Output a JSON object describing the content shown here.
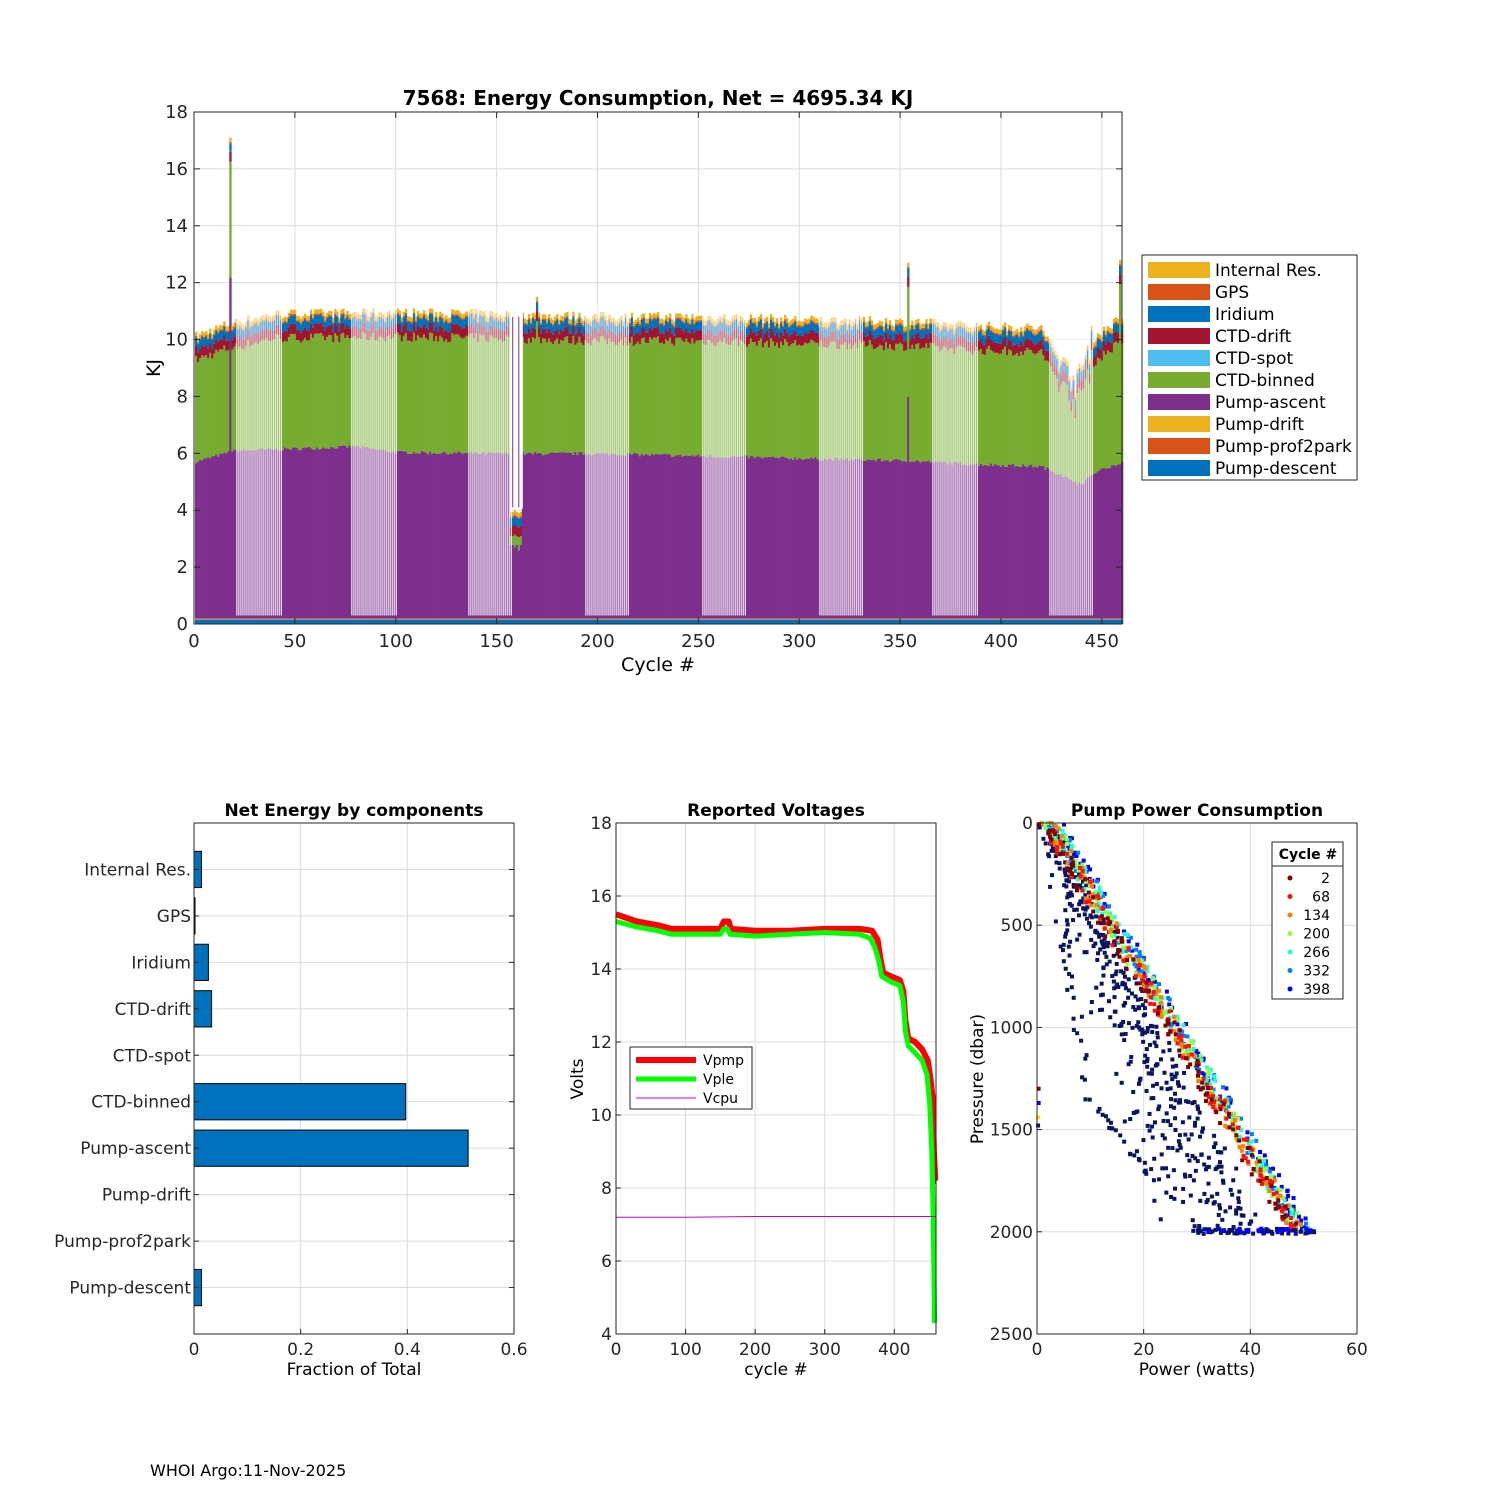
{
  "footer": "WHOI Argo:11-Nov-2025",
  "colors": {
    "Pump-descent": "#0072BD",
    "Pump-prof2park": "#D95319",
    "Pump-drift": "#EDB120",
    "Pump-ascent": "#7E2F8E",
    "CTD-binned": "#77AC30",
    "CTD-spot": "#4DBEEE",
    "CTD-drift": "#A2142F",
    "Iridium": "#0072BD",
    "GPS": "#D95319",
    "Internal Res.": "#EDB120"
  },
  "chart_data": [
    {
      "type": "stacked-bar",
      "title": "7568: Energy Consumption,  Net = 4695.34 KJ",
      "xlabel": "Cycle #",
      "ylabel": "KJ",
      "xlim": [
        0,
        460
      ],
      "ylim": [
        0,
        18
      ],
      "xticks": [
        0,
        50,
        100,
        150,
        200,
        250,
        300,
        350,
        400,
        450
      ],
      "yticks": [
        0,
        2,
        4,
        6,
        8,
        10,
        12,
        14,
        16,
        18
      ],
      "grid": true,
      "legend_position": "outside-right",
      "legend": [
        "Internal Res.",
        "GPS",
        "Iridium",
        "CTD-drift",
        "CTD-spot",
        "CTD-binned",
        "Pump-ascent",
        "Pump-drift",
        "Pump-prof2park",
        "Pump-descent"
      ],
      "stack_order": [
        "Pump-descent",
        "Pump-prof2park",
        "Pump-drift",
        "Pump-ascent",
        "CTD-binned",
        "CTD-spot",
        "CTD-drift",
        "Iridium",
        "GPS",
        "Internal Res."
      ],
      "cycles": 460,
      "typical_values": {
        "Pump-descent": 0.15,
        "Pump-prof2park": 0.02,
        "Pump-drift": 0.02,
        "Pump-ascent": 5.7,
        "CTD-binned": 4.3,
        "CTD-spot": 0.0,
        "CTD-drift": 0.35,
        "Iridium": 0.3,
        "GPS": 0.05,
        "Internal Res.": 0.15
      },
      "pump_ascent_profile": [
        [
          0,
          5.5
        ],
        [
          20,
          5.9
        ],
        [
          80,
          6.05
        ],
        [
          100,
          5.85
        ],
        [
          150,
          5.8
        ],
        [
          200,
          5.8
        ],
        [
          260,
          5.7
        ],
        [
          320,
          5.6
        ],
        [
          355,
          5.55
        ],
        [
          380,
          5.45
        ],
        [
          420,
          5.35
        ],
        [
          432,
          5.0
        ],
        [
          440,
          4.7
        ],
        [
          445,
          5.1
        ],
        [
          460,
          5.5
        ]
      ],
      "total_profile": [
        [
          0,
          10.1
        ],
        [
          15,
          10.5
        ],
        [
          40,
          10.9
        ],
        [
          100,
          10.95
        ],
        [
          150,
          10.9
        ],
        [
          200,
          10.8
        ],
        [
          250,
          10.8
        ],
        [
          300,
          10.7
        ],
        [
          340,
          10.65
        ],
        [
          360,
          10.6
        ],
        [
          380,
          10.5
        ],
        [
          420,
          10.4
        ],
        [
          432,
          9.0
        ],
        [
          438,
          8.5
        ],
        [
          445,
          10.0
        ],
        [
          460,
          10.8
        ]
      ],
      "annotations": [
        {
          "cycle": 18,
          "total": 17.1,
          "pump_ascent": 12.0
        },
        {
          "cycle": 354,
          "total": 12.7,
          "pump_ascent": 7.8
        },
        {
          "cycle": 459,
          "total": 12.8
        },
        {
          "cycle": 159,
          "total": 4.0,
          "pump_ascent": 2.5
        },
        {
          "cycle": 161,
          "total": 3.9,
          "pump_ascent": 2.4
        },
        {
          "cycle": 170,
          "total": 11.5
        }
      ],
      "hatched_ranges": [
        [
          21,
          43
        ],
        [
          78,
          100
        ],
        [
          136,
          157
        ],
        [
          194,
          215
        ],
        [
          252,
          273
        ],
        [
          310,
          331
        ],
        [
          366,
          388
        ],
        [
          424,
          445
        ]
      ]
    },
    {
      "type": "barh",
      "title": "Net Energy by components",
      "xlabel": "Fraction of Total",
      "xlim": [
        0,
        0.6
      ],
      "xticks": [
        0,
        0.2,
        0.4,
        0.6
      ],
      "xtick_labels": [
        "0",
        "0.2",
        "0.4",
        "0.6"
      ],
      "categories": [
        "Internal Res.",
        "GPS",
        "Iridium",
        "CTD-drift",
        "CTD-spot",
        "CTD-binned",
        "Pump-ascent",
        "Pump-drift",
        "Pump-prof2park",
        "Pump-descent"
      ],
      "values": [
        0.014,
        0.001,
        0.027,
        0.033,
        0.0,
        0.397,
        0.514,
        0.0,
        0.0,
        0.014
      ],
      "color": "#0072BD",
      "grid": true
    },
    {
      "type": "line",
      "title": "Reported Voltages",
      "xlabel": "cycle #",
      "ylabel": "Volts",
      "xlim": [
        0,
        460
      ],
      "ylim": [
        4,
        18
      ],
      "xticks": [
        0,
        100,
        200,
        300,
        400
      ],
      "yticks": [
        4,
        6,
        8,
        10,
        12,
        14,
        16,
        18
      ],
      "legend_position": "center-left",
      "grid": true,
      "series": [
        {
          "name": "Vpmp",
          "color": "#FF0000",
          "width": 6,
          "points": [
            [
              0,
              15.5
            ],
            [
              30,
              15.3
            ],
            [
              60,
              15.2
            ],
            [
              80,
              15.1
            ],
            [
              150,
              15.1
            ],
            [
              155,
              15.3
            ],
            [
              162,
              15.3
            ],
            [
              165,
              15.1
            ],
            [
              200,
              15.05
            ],
            [
              250,
              15.05
            ],
            [
              300,
              15.1
            ],
            [
              350,
              15.1
            ],
            [
              368,
              15.05
            ],
            [
              376,
              14.8
            ],
            [
              380,
              14.3
            ],
            [
              384,
              13.9
            ],
            [
              395,
              13.8
            ],
            [
              408,
              13.7
            ],
            [
              413,
              13.4
            ],
            [
              416,
              12.6
            ],
            [
              420,
              12.1
            ],
            [
              430,
              12.0
            ],
            [
              440,
              11.8
            ],
            [
              448,
              11.5
            ],
            [
              452,
              11.0
            ],
            [
              455,
              10.5
            ],
            [
              457,
              9.0
            ],
            [
              459,
              8.2
            ],
            [
              460,
              8.2
            ]
          ]
        },
        {
          "name": "Vple",
          "color": "#00FF00",
          "width": 5,
          "points": [
            [
              0,
              15.3
            ],
            [
              30,
              15.15
            ],
            [
              60,
              15.05
            ],
            [
              80,
              14.95
            ],
            [
              150,
              14.95
            ],
            [
              155,
              15.1
            ],
            [
              160,
              15.1
            ],
            [
              164,
              14.95
            ],
            [
              200,
              14.9
            ],
            [
              250,
              14.95
            ],
            [
              300,
              15.0
            ],
            [
              350,
              14.95
            ],
            [
              365,
              14.85
            ],
            [
              372,
              14.6
            ],
            [
              378,
              14.2
            ],
            [
              382,
              13.8
            ],
            [
              395,
              13.65
            ],
            [
              408,
              13.55
            ],
            [
              413,
              13.1
            ],
            [
              416,
              12.3
            ],
            [
              420,
              11.9
            ],
            [
              430,
              11.7
            ],
            [
              440,
              11.5
            ],
            [
              447,
              11.1
            ],
            [
              451,
              10.3
            ],
            [
              454,
              9.0
            ],
            [
              456,
              7.2
            ],
            [
              458,
              4.3
            ]
          ]
        },
        {
          "name": "Vcpu",
          "color": "#CC00CC",
          "width": 1,
          "points": [
            [
              0,
              7.2
            ],
            [
              100,
              7.2
            ],
            [
              200,
              7.22
            ],
            [
              300,
              7.22
            ],
            [
              400,
              7.22
            ],
            [
              455,
              7.22
            ],
            [
              460,
              7.22
            ]
          ]
        }
      ]
    },
    {
      "type": "scatter",
      "title": "Pump Power Consumption",
      "xlabel": "Power (watts)",
      "ylabel": "Pressure (dbar)",
      "xlim": [
        0,
        60
      ],
      "ylim": [
        0,
        2500
      ],
      "y_reversed": true,
      "xticks": [
        0,
        20,
        40,
        60
      ],
      "yticks": [
        0,
        500,
        1000,
        1500,
        2000,
        2500
      ],
      "grid": true,
      "legend_title": "Cycle #",
      "legend_position": "top-right",
      "series": [
        {
          "name": "2",
          "color": "#7F0000"
        },
        {
          "name": "68",
          "color": "#FF1000"
        },
        {
          "name": "134",
          "color": "#FF8000"
        },
        {
          "name": "200",
          "color": "#8FFF40"
        },
        {
          "name": "266",
          "color": "#20FFD0"
        },
        {
          "name": "332",
          "color": "#0080FF"
        },
        {
          "name": "398",
          "color": "#0000FF"
        }
      ],
      "envelope": {
        "top_power": [
          0,
          5
        ],
        "bottom_power": [
          44,
          52
        ],
        "bottom_pressure": 2000
      },
      "outliers_low_power_line": [
        [
          2,
          100
        ],
        [
          10,
          1350
        ],
        [
          30,
          2000
        ]
      ]
    }
  ]
}
